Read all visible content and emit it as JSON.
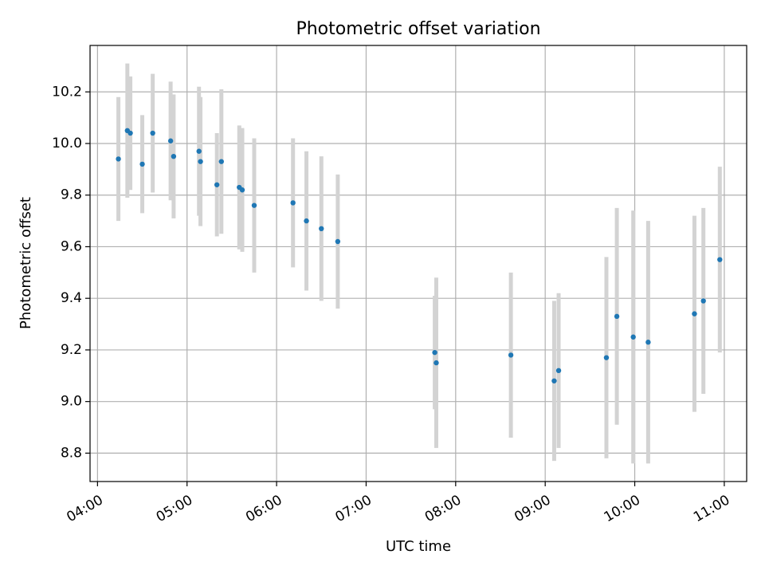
{
  "chart_data": {
    "type": "scatter",
    "title": "Photometric offset variation",
    "xlabel": "UTC time",
    "ylabel": "Photometric offset",
    "x_axis": {
      "min": "03:55",
      "max": "11:15",
      "ticks": [
        "04:00",
        "05:00",
        "06:00",
        "07:00",
        "08:00",
        "09:00",
        "10:00",
        "11:00"
      ]
    },
    "y_axis": {
      "min": 8.69,
      "max": 10.38,
      "ticks": [
        "8.8",
        "9.0",
        "9.2",
        "9.4",
        "9.6",
        "9.8",
        "10.0",
        "10.2"
      ]
    },
    "grid": true,
    "legend": "none",
    "colors": {
      "point": "#1f77b4",
      "errorbar": "#d3d3d3",
      "grid": "#b0b0b0"
    },
    "points": [
      {
        "x": "04:14",
        "y": 9.94,
        "err": 0.24
      },
      {
        "x": "04:20",
        "y": 10.05,
        "err": 0.26
      },
      {
        "x": "04:22",
        "y": 10.04,
        "err": 0.22
      },
      {
        "x": "04:30",
        "y": 9.92,
        "err": 0.19
      },
      {
        "x": "04:37",
        "y": 10.04,
        "err": 0.23
      },
      {
        "x": "04:49",
        "y": 10.01,
        "err": 0.23
      },
      {
        "x": "04:51",
        "y": 9.95,
        "err": 0.24
      },
      {
        "x": "05:08",
        "y": 9.97,
        "err": 0.25
      },
      {
        "x": "05:09",
        "y": 9.93,
        "err": 0.25
      },
      {
        "x": "05:20",
        "y": 9.84,
        "err": 0.2
      },
      {
        "x": "05:23",
        "y": 9.93,
        "err": 0.28
      },
      {
        "x": "05:35",
        "y": 9.83,
        "err": 0.24
      },
      {
        "x": "05:37",
        "y": 9.82,
        "err": 0.24
      },
      {
        "x": "05:45",
        "y": 9.76,
        "err": 0.26
      },
      {
        "x": "06:11",
        "y": 9.77,
        "err": 0.25
      },
      {
        "x": "06:20",
        "y": 9.7,
        "err": 0.27
      },
      {
        "x": "06:30",
        "y": 9.67,
        "err": 0.28
      },
      {
        "x": "06:41",
        "y": 9.62,
        "err": 0.26
      },
      {
        "x": "07:46",
        "y": 9.19,
        "err": 0.22
      },
      {
        "x": "07:47",
        "y": 9.15,
        "err": 0.33
      },
      {
        "x": "08:37",
        "y": 9.18,
        "err": 0.32
      },
      {
        "x": "09:06",
        "y": 9.08,
        "err": 0.31
      },
      {
        "x": "09:09",
        "y": 9.12,
        "err": 0.3
      },
      {
        "x": "09:41",
        "y": 9.17,
        "err": 0.39
      },
      {
        "x": "09:48",
        "y": 9.33,
        "err": 0.42
      },
      {
        "x": "09:59",
        "y": 9.25,
        "err": 0.49
      },
      {
        "x": "10:09",
        "y": 9.23,
        "err": 0.47
      },
      {
        "x": "10:40",
        "y": 9.34,
        "err": 0.38
      },
      {
        "x": "10:46",
        "y": 9.39,
        "err": 0.36
      },
      {
        "x": "10:57",
        "y": 9.55,
        "err": 0.36
      }
    ]
  }
}
